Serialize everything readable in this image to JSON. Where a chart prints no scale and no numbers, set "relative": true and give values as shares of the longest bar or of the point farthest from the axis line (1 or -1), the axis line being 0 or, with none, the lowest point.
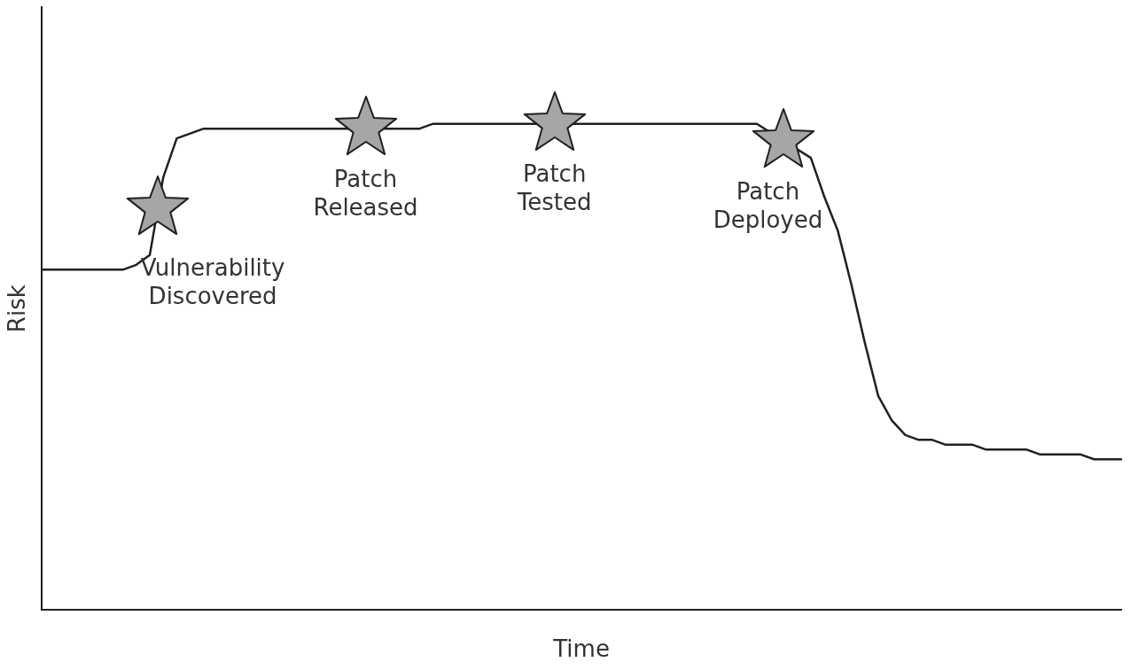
{
  "chart_data": {
    "type": "line",
    "relative": true,
    "xlabel": "Time",
    "ylabel": "Risk",
    "legend": false,
    "grid": false,
    "categories": [
      null,
      null,
      null,
      null,
      null,
      null,
      null,
      null,
      null,
      null,
      null,
      null,
      null,
      null,
      null,
      null,
      null,
      null,
      null,
      null,
      null,
      null,
      null,
      null,
      null,
      null,
      null,
      null,
      null,
      null,
      null,
      null,
      null,
      null,
      null,
      null,
      null,
      null,
      null,
      null,
      null,
      null,
      null,
      null,
      null,
      null,
      null,
      null,
      null,
      null,
      null,
      null,
      null,
      null,
      null,
      null,
      null,
      null,
      null,
      null,
      null,
      null,
      null,
      null,
      null,
      null,
      null,
      null,
      null,
      null,
      null,
      null,
      null,
      null,
      null,
      null,
      null,
      null,
      null,
      null,
      null
    ],
    "series": [
      {
        "color": "#231f20",
        "line_style": "solid",
        "values": [
          0.7,
          0.7,
          0.7,
          0.7,
          0.7,
          0.7,
          0.7,
          0.71,
          0.73,
          0.89,
          0.97,
          0.98,
          0.99,
          0.99,
          0.99,
          0.99,
          0.99,
          0.99,
          0.99,
          0.99,
          0.99,
          0.99,
          0.99,
          null,
          null,
          null,
          0.99,
          0.99,
          0.99,
          1,
          1,
          1,
          1,
          1,
          1,
          1,
          1,
          null,
          null,
          null,
          1,
          1,
          1,
          1,
          1,
          1,
          1,
          1,
          1,
          1,
          1,
          1,
          1,
          1,
          null,
          null,
          null,
          0.93,
          0.85,
          0.78,
          0.67,
          0.55,
          0.44,
          0.39,
          0.36,
          0.35,
          0.35,
          0.34,
          0.34,
          0.34,
          0.33,
          0.33,
          0.33,
          0.33,
          0.32,
          0.32,
          0.32,
          0.32,
          0.31,
          0.31,
          0.31
        ]
      }
    ],
    "annotations": [
      "Vulnerability Discovered",
      "Patch Released",
      "Patch Tested",
      "Patch Deployed"
    ]
  }
}
